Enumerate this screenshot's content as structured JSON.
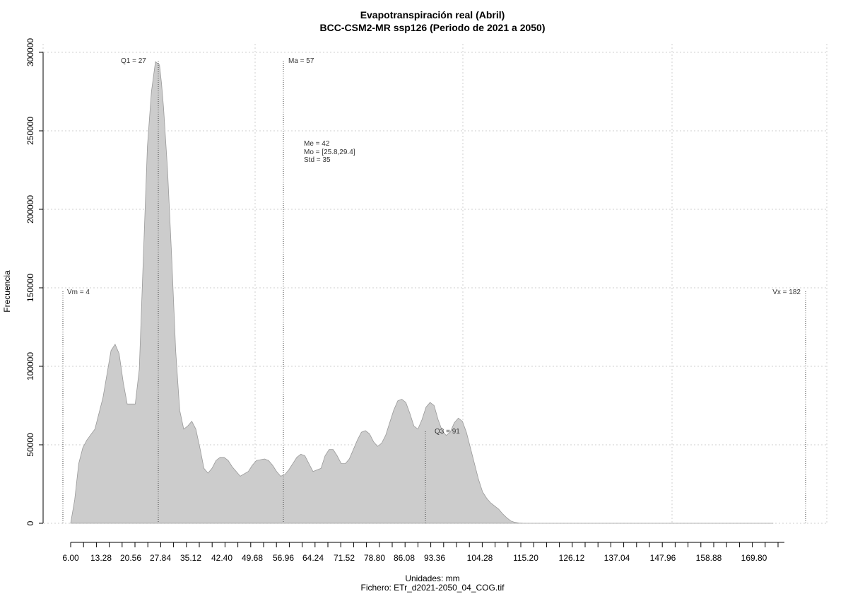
{
  "chart_data": {
    "type": "area",
    "title": "Evapotranspiración real (Abril)",
    "subtitle": "BCC-CSM2-MR ssp126 (Periodo de 2021 a 2050)",
    "xlabel": "Unidades: mm",
    "caption": "Fichero: ETr_d2021-2050_04_COG.tif",
    "ylabel": "Frecuencia",
    "xlim": [
      0,
      190
    ],
    "ylim": [
      0,
      300000
    ],
    "grid": true,
    "fill_color": "#cccccc",
    "x_ticks": [
      "6.00",
      "13.28",
      "20.56",
      "27.84",
      "35.12",
      "42.40",
      "49.68",
      "56.96",
      "64.24",
      "71.52",
      "78.80",
      "86.08",
      "93.36",
      "104.28",
      "115.20",
      "126.12",
      "137.04",
      "147.96",
      "158.88",
      "169.80"
    ],
    "y_ticks": [
      "0",
      "50000",
      "100000",
      "150000",
      "200000",
      "250000",
      "300000"
    ],
    "series": [
      {
        "x": [
          6,
          7,
          8,
          9,
          10,
          12,
          14,
          16,
          17,
          18,
          19,
          20,
          22,
          23,
          24,
          25,
          26,
          27,
          28,
          28.5,
          29,
          30,
          31,
          32,
          33,
          34,
          35,
          36,
          37,
          38,
          39,
          40,
          41,
          42,
          43,
          44,
          45,
          46,
          47,
          48,
          50,
          51,
          52,
          54,
          55,
          56,
          57,
          58,
          59,
          60,
          62,
          63,
          64,
          65,
          66,
          68,
          69,
          70,
          71,
          72,
          73,
          74,
          75,
          76,
          77,
          78,
          79,
          80,
          81,
          82,
          83,
          84,
          85,
          86,
          87,
          88,
          89,
          90,
          91,
          92,
          93,
          94,
          95,
          96,
          97,
          98,
          99,
          100,
          101,
          102,
          103,
          104,
          105,
          106,
          107,
          108,
          109,
          110,
          111,
          112,
          113,
          114,
          115,
          116,
          117,
          118,
          119,
          120,
          121,
          122,
          123,
          124,
          125,
          126,
          127,
          128,
          129,
          130,
          132,
          134,
          137,
          140,
          150,
          160,
          170,
          180
        ],
        "y": [
          0,
          15000,
          38000,
          48000,
          53000,
          60000,
          80000,
          110000,
          114000,
          108000,
          90000,
          76000,
          76000,
          98000,
          170000,
          240000,
          275000,
          294000,
          292000,
          280000,
          265000,
          225000,
          170000,
          110000,
          72000,
          60000,
          62000,
          65000,
          60000,
          48000,
          35000,
          32000,
          35000,
          40000,
          42000,
          42000,
          40000,
          36000,
          33000,
          30000,
          33000,
          37000,
          40000,
          41000,
          40000,
          37000,
          33000,
          30000,
          31000,
          34000,
          42000,
          44000,
          43000,
          38000,
          33000,
          35000,
          43000,
          47000,
          47000,
          43000,
          38000,
          38000,
          41000,
          47000,
          53000,
          58000,
          59000,
          57000,
          52000,
          49000,
          51000,
          56000,
          64000,
          72000,
          78000,
          79000,
          77000,
          70000,
          62000,
          60000,
          66000,
          74000,
          77000,
          75000,
          66000,
          59000,
          56000,
          58000,
          64000,
          67000,
          65000,
          58000,
          48000,
          38000,
          28000,
          20000,
          16000,
          13000,
          11000,
          9000,
          6000,
          3500,
          1500,
          600,
          200,
          50,
          0,
          0,
          0,
          0,
          0,
          0,
          0,
          0,
          0,
          0,
          0,
          0,
          0,
          0,
          0,
          0,
          0,
          0,
          0,
          0
        ]
      }
    ],
    "annotations": {
      "q1": "Q1 = 27",
      "ma": "Ma = 57",
      "q3": "Q3 = 91",
      "vm": "Vm = 4",
      "vx": "Vx = 182",
      "me": "Me = 42",
      "mo": "Mo = [25.8,29.4]",
      "std": "Std = 35"
    }
  }
}
